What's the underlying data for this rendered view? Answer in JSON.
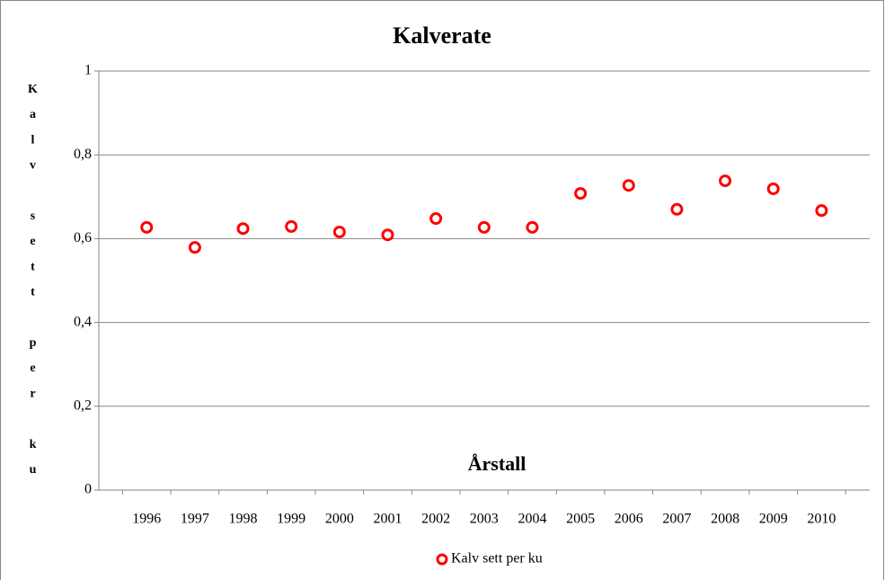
{
  "chart_data": {
    "type": "scatter",
    "title": "Kalverate",
    "x_label": "Årstall",
    "y_label": "Kalv sett per ku",
    "categories": [
      "1996",
      "1997",
      "1998",
      "1999",
      "2000",
      "2001",
      "2002",
      "2003",
      "2004",
      "2005",
      "2006",
      "2007",
      "2008",
      "2009",
      "2010"
    ],
    "series": [
      {
        "name": "Kalv sett per ku",
        "color": "#ff0000",
        "values": [
          0.627,
          0.579,
          0.624,
          0.629,
          0.616,
          0.609,
          0.648,
          0.627,
          0.627,
          0.708,
          0.727,
          0.67,
          0.738,
          0.719,
          0.667
        ]
      }
    ],
    "ylim": [
      0,
      1
    ],
    "yticks": [
      0,
      {
        "value": 0.2,
        "label": "0,2"
      },
      {
        "value": 0.4,
        "label": "0,4"
      },
      {
        "value": 0.6,
        "label": "0,6"
      },
      {
        "value": 0.8,
        "label": "0,8"
      },
      1
    ],
    "grid": true,
    "legend": "bottom"
  }
}
